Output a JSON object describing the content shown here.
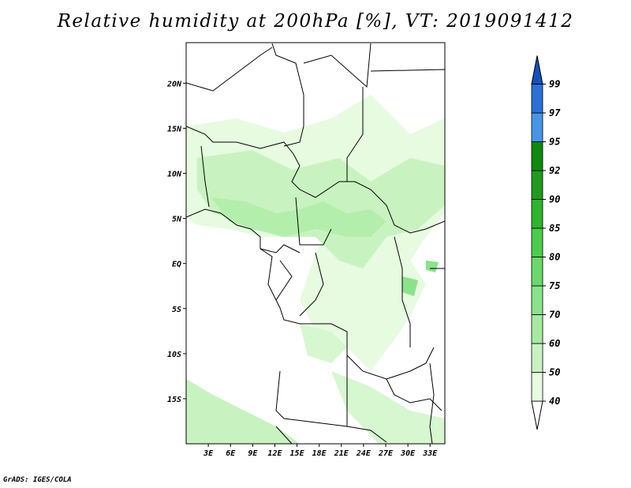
{
  "title": "Relative humidity at 200hPa [%], VT: 2019091412",
  "footer": "GrADS: IGES/COLA",
  "map": {
    "region": "Central Africa",
    "lon_range": [
      0,
      35
    ],
    "lat_range": [
      -20,
      24.5
    ],
    "lat_ticks": [
      {
        "value": 20,
        "label": "20N"
      },
      {
        "value": 15,
        "label": "15N"
      },
      {
        "value": 10,
        "label": "10N"
      },
      {
        "value": 5,
        "label": "5N"
      },
      {
        "value": 0,
        "label": "EQ"
      },
      {
        "value": -5,
        "label": "5S"
      },
      {
        "value": -10,
        "label": "10S"
      },
      {
        "value": -15,
        "label": "15S"
      }
    ],
    "lon_ticks": [
      {
        "value": 3,
        "label": "3E"
      },
      {
        "value": 6,
        "label": "6E"
      },
      {
        "value": 9,
        "label": "9E"
      },
      {
        "value": 12,
        "label": "12E"
      },
      {
        "value": 15,
        "label": "15E"
      },
      {
        "value": 18,
        "label": "18E"
      },
      {
        "value": 21,
        "label": "21E"
      },
      {
        "value": 24,
        "label": "24E"
      },
      {
        "value": 27,
        "label": "27E"
      },
      {
        "value": 30,
        "label": "30E"
      },
      {
        "value": 33,
        "label": "33E"
      }
    ]
  },
  "colorbar": {
    "levels": [
      "40",
      "50",
      "60",
      "70",
      "75",
      "80",
      "85",
      "90",
      "92",
      "95",
      "97",
      "99"
    ],
    "colors": [
      "#ffffff",
      "#e6fbe0",
      "#c8f3c0",
      "#a6eaa0",
      "#8ae38a",
      "#6ad86a",
      "#4ccc4c",
      "#2fb42f",
      "#1f9a1f",
      "#0f8a0f",
      "#4a94e8",
      "#2a70d8",
      "#1450c0"
    ]
  }
}
